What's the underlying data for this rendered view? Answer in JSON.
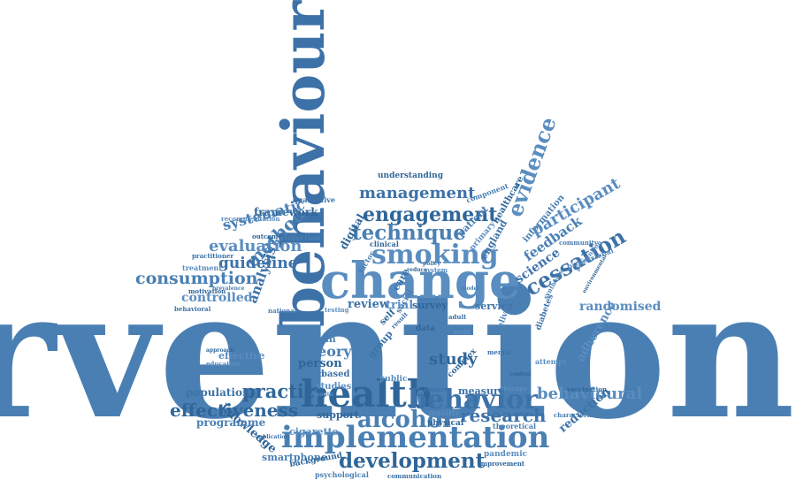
{
  "palette": {
    "word_colors": [
      "#4a7fb3",
      "#3d72a8",
      "#5a8dc0",
      "#2f6699"
    ],
    "background": "#ffffff"
  },
  "words": [
    "intervention",
    "behaviour",
    "change",
    "health",
    "implementation",
    "behavior",
    "smoking",
    "engagement",
    "technique",
    "management",
    "evidence",
    "development",
    "alcohol",
    "research",
    "behavioural",
    "effectiveness",
    "consumption",
    "cessation",
    "participant",
    "practice",
    "method",
    "guideline",
    "evaluation",
    "framework",
    "systematic",
    "analysis",
    "controlled",
    "study",
    "theory",
    "review",
    "trial",
    "survey",
    "feedback",
    "science",
    "randomised",
    "knowledge",
    "programme",
    "population",
    "effective",
    "person",
    "smartphone",
    "reduction",
    "adherence",
    "digital",
    "patient",
    "england",
    "primary",
    "healthcare",
    "information",
    "service",
    "cigarette",
    "support",
    "human",
    "group",
    "quality",
    "physical",
    "design",
    "based",
    "studies",
    "background",
    "psychological",
    "communication",
    "pandemic",
    "improvement",
    "theoretical",
    "measure",
    "professional",
    "understanding",
    "component",
    "qualitative",
    "recommendation",
    "outcome",
    "infection",
    "practitioner",
    "treatment",
    "motivation",
    "prevalence",
    "behavioral",
    "education",
    "approach",
    "national",
    "setting",
    "testing",
    "clinical",
    "delivery",
    "diabetes",
    "attempt",
    "data",
    "report",
    "related",
    "therapy",
    "vaccination",
    "community",
    "mental",
    "audit",
    "self",
    "social",
    "care",
    "public",
    "complex",
    "characteristic",
    "application",
    "prevention",
    "environmental",
    "synthesis",
    "policy",
    "system",
    "reduce",
    "model",
    "adult",
    "month",
    "control",
    "factor",
    "result"
  ]
}
